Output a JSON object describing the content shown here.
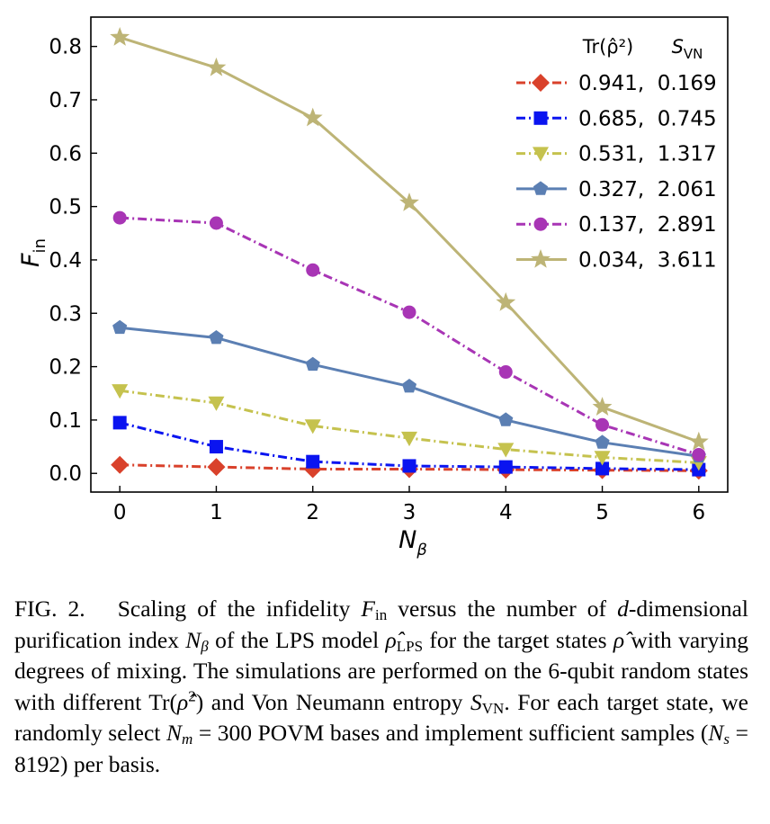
{
  "chart_data": {
    "type": "line",
    "title": "",
    "xlabel": "N",
    "xlabel_sub": "β",
    "ylabel": "F",
    "ylabel_sub": "in",
    "x": [
      0,
      1,
      2,
      3,
      4,
      5,
      6
    ],
    "xlim": [
      -0.3,
      6.3
    ],
    "ylim": [
      -0.035,
      0.855
    ],
    "xticks": [
      "0",
      "1",
      "2",
      "3",
      "4",
      "5",
      "6"
    ],
    "yticks": [
      "0.0",
      "0.1",
      "0.2",
      "0.3",
      "0.4",
      "0.5",
      "0.6",
      "0.7",
      "0.8"
    ],
    "grid": false,
    "legend_position": "top-right",
    "legend_header": {
      "col1": "Tr(ρ̂²)",
      "col2": "S",
      "col2_sub": "VN"
    },
    "series": [
      {
        "name": "0.941,  0.169",
        "color": "#d9412b",
        "marker": "diamond",
        "dash": "10,4,2,4",
        "values": [
          0.016,
          0.012,
          0.008,
          0.008,
          0.007,
          0.006,
          0.005
        ]
      },
      {
        "name": "0.685,  0.745",
        "color": "#0a14f0",
        "marker": "square",
        "dash": "10,4,2,4",
        "values": [
          0.095,
          0.05,
          0.022,
          0.014,
          0.012,
          0.009,
          0.007
        ]
      },
      {
        "name": "0.531,  1.317",
        "color": "#c5c24e",
        "marker": "triangle-down",
        "dash": "10,4,2,4",
        "values": [
          0.155,
          0.132,
          0.089,
          0.066,
          0.045,
          0.03,
          0.02
        ]
      },
      {
        "name": "0.327,  2.061",
        "color": "#5b7fb3",
        "marker": "pentagon",
        "dash": "",
        "values": [
          0.273,
          0.254,
          0.204,
          0.163,
          0.1,
          0.058,
          0.032
        ]
      },
      {
        "name": "0.137,  2.891",
        "color": "#a835b5",
        "marker": "circle",
        "dash": "10,4,2,4",
        "values": [
          0.479,
          0.469,
          0.381,
          0.302,
          0.19,
          0.091,
          0.035
        ]
      },
      {
        "name": "0.034,  3.611",
        "color": "#bdb476",
        "marker": "star",
        "dash": "",
        "values": [
          0.817,
          0.76,
          0.666,
          0.507,
          0.32,
          0.124,
          0.059
        ]
      }
    ]
  },
  "caption": {
    "label": "FIG. 2.",
    "text": "Scaling of the infidelity Fin versus the number of d-dimensional purification index Nβ of the LPS model ρ̂LPS for the target states ρ̂ with varying degrees of mixing. The simulations are performed on the 6-qubit random states with different Tr(ρ̂²) and Von Neumann entropy SVN. For each target state, we randomly select Nm = 300 POVM bases and implement sufficient samples (Ns = 8192) per basis."
  }
}
